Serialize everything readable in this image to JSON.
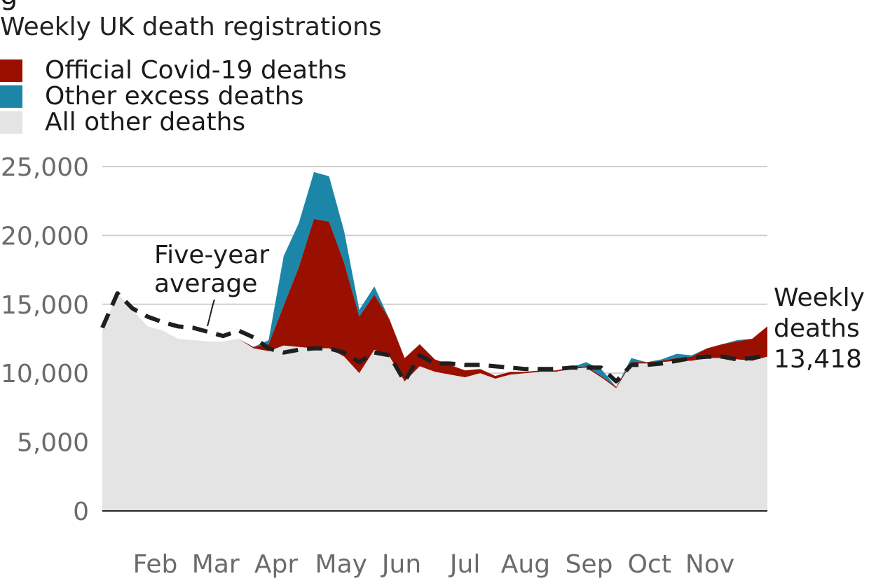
{
  "chart_data": {
    "type": "area",
    "title": "Weekly UK death registrations",
    "header_fragment": "g",
    "ylim": [
      0,
      25000
    ],
    "yticks": [
      0,
      5000,
      10000,
      15000,
      20000,
      25000
    ],
    "ytick_labels": [
      "0",
      "5,000",
      "10,000",
      "15,000",
      "20,000",
      "25,000"
    ],
    "month_labels": [
      "Feb",
      "Mar",
      "Apr",
      "May",
      "Jun",
      "Jul",
      "Aug",
      "Sep",
      "Oct",
      "Nov"
    ],
    "month_label_weeks": [
      4.5,
      8.5,
      12.5,
      16.8,
      20.8,
      25,
      29,
      33.2,
      37.2,
      41.2
    ],
    "weeks": [
      1,
      2,
      3,
      4,
      5,
      6,
      7,
      8,
      9,
      10,
      11,
      12,
      13,
      14,
      15,
      16,
      17,
      18,
      19,
      20,
      21,
      22,
      23,
      24,
      25,
      26,
      27,
      28,
      29,
      30,
      31,
      32,
      33,
      34,
      35,
      36,
      37,
      38,
      39,
      40,
      41,
      42,
      43,
      44,
      45
    ],
    "legend": [
      {
        "name": "Official Covid-19 deaths",
        "color": "#9a1000"
      },
      {
        "name": "Other excess deaths",
        "color": "#1b86a8"
      },
      {
        "name": "All other deaths",
        "color": "#e4e4e4"
      }
    ],
    "series": [
      {
        "name": "All other deaths",
        "color": "#e4e4e4",
        "values": [
          13100,
          15800,
          14600,
          13400,
          13100,
          12500,
          12400,
          12300,
          12300,
          12500,
          11800,
          11600,
          12000,
          11900,
          11800,
          11800,
          11200,
          10000,
          11700,
          11200,
          9400,
          10500,
          10100,
          9900,
          9700,
          10000,
          9600,
          9900,
          10000,
          10100,
          10100,
          10300,
          10400,
          9700,
          8900,
          10700,
          10700,
          10800,
          10900,
          10900,
          11100,
          11100,
          11000,
          10900,
          11200
        ]
      },
      {
        "name": "Official Covid-19 deaths",
        "color": "#9a1000",
        "values": [
          0,
          0,
          0,
          0,
          0,
          0,
          0,
          0,
          0,
          0,
          100,
          500,
          2900,
          5800,
          9400,
          9200,
          6800,
          4100,
          4000,
          2700,
          1700,
          1600,
          900,
          700,
          500,
          300,
          200,
          200,
          100,
          100,
          100,
          100,
          100,
          100,
          100,
          100,
          100,
          100,
          200,
          300,
          700,
          1000,
          1300,
          1600,
          2200
        ]
      },
      {
        "name": "Other excess deaths",
        "color": "#1b86a8",
        "values": [
          0,
          0,
          0,
          0,
          0,
          0,
          0,
          0,
          0,
          0,
          0,
          300,
          3600,
          3200,
          3400,
          3300,
          2300,
          500,
          600,
          0,
          0,
          0,
          0,
          0,
          0,
          0,
          0,
          0,
          0,
          0,
          0,
          0,
          300,
          500,
          0,
          300,
          0,
          100,
          300,
          100,
          0,
          0,
          100,
          0,
          0
        ]
      }
    ],
    "five_year_average": {
      "name": "Five-year average",
      "values": [
        13300,
        15800,
        14700,
        14100,
        13700,
        13400,
        13300,
        13000,
        12700,
        13100,
        12600,
        11800,
        11500,
        11700,
        11800,
        11800,
        11500,
        10800,
        11500,
        11300,
        9400,
        11300,
        10700,
        10700,
        10600,
        10600,
        10500,
        10400,
        10300,
        10300,
        10300,
        10400,
        10400,
        10400,
        9400,
        10600,
        10600,
        10700,
        10900,
        11100,
        11200,
        11200,
        11000,
        11100,
        11300
      ]
    },
    "annotations": {
      "average_label": [
        "Five-year",
        "average"
      ],
      "latest_label": [
        "Weekly",
        "deaths",
        "13,418"
      ]
    }
  }
}
